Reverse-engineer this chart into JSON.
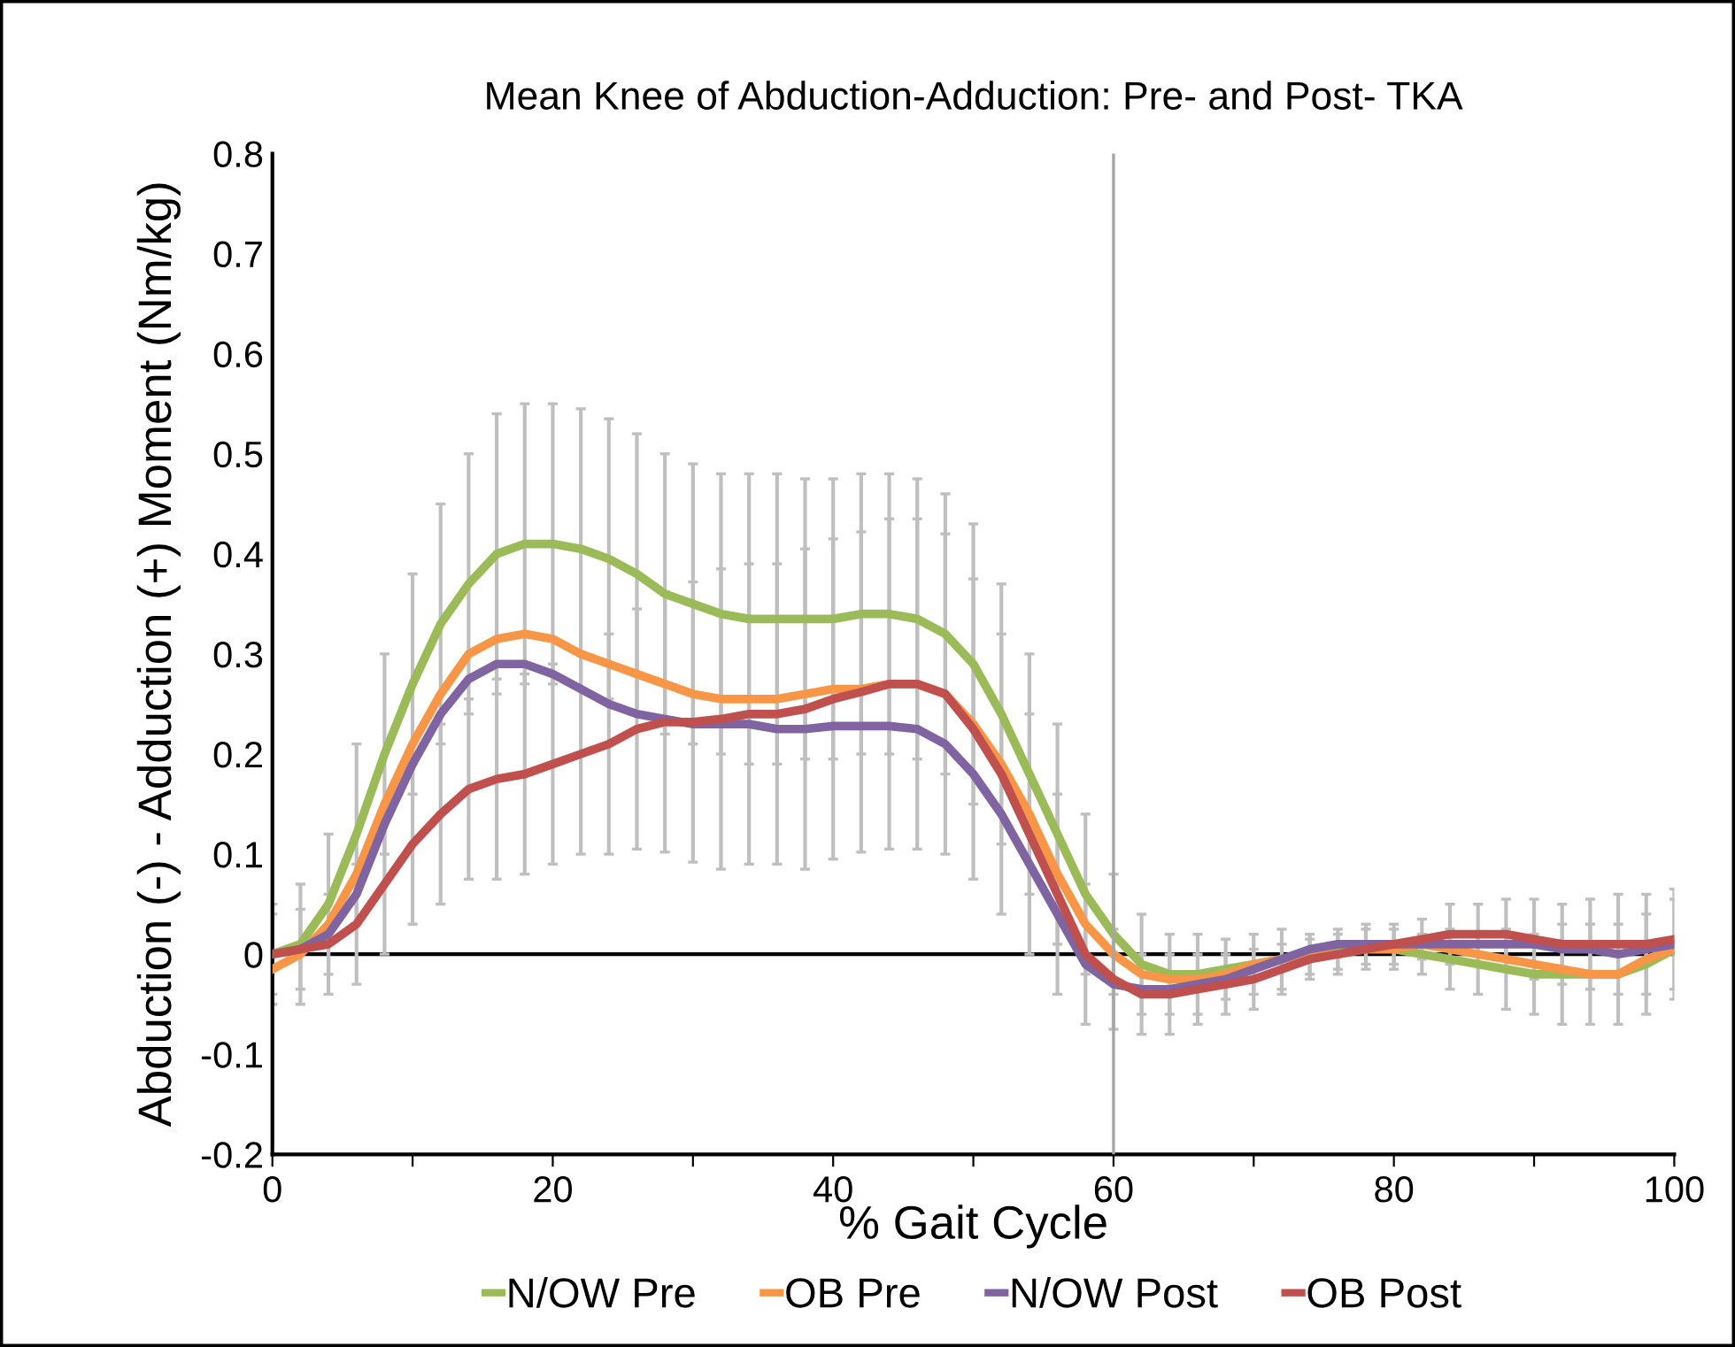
{
  "chart_data": {
    "type": "line",
    "title": "Mean Knee of Abduction-Adduction: Pre- and Post- TKA",
    "xlabel": "% Gait Cycle",
    "ylabel": "Abduction (-) - Adduction (+) Moment (Nm/kg)",
    "x": [
      0,
      2,
      4,
      6,
      8,
      10,
      12,
      14,
      16,
      18,
      20,
      22,
      24,
      26,
      28,
      30,
      32,
      34,
      36,
      38,
      40,
      42,
      44,
      46,
      48,
      50,
      52,
      54,
      56,
      58,
      60,
      62,
      64,
      66,
      68,
      70,
      72,
      74,
      76,
      78,
      80,
      82,
      84,
      86,
      88,
      90,
      92,
      94,
      96,
      98,
      100
    ],
    "series": [
      {
        "name": "N/OW Pre",
        "color": "#9bbb59",
        "values": [
          0,
          0.01,
          0.05,
          0.12,
          0.2,
          0.27,
          0.33,
          0.37,
          0.4,
          0.41,
          0.41,
          0.405,
          0.395,
          0.38,
          0.36,
          0.35,
          0.34,
          0.335,
          0.335,
          0.335,
          0.335,
          0.34,
          0.34,
          0.335,
          0.32,
          0.29,
          0.24,
          0.18,
          0.12,
          0.06,
          0.02,
          -0.01,
          -0.02,
          -0.02,
          -0.015,
          -0.01,
          -0.005,
          0,
          0.005,
          0.01,
          0.005,
          0,
          -0.005,
          -0.01,
          -0.015,
          -0.02,
          -0.02,
          -0.02,
          -0.02,
          -0.01,
          0.005
        ],
        "errors": [
          0.05,
          0.06,
          0.07,
          0.09,
          0.1,
          0.11,
          0.12,
          0.13,
          0.14,
          0.14,
          0.14,
          0.14,
          0.14,
          0.14,
          0.14,
          0.14,
          0.14,
          0.145,
          0.145,
          0.14,
          0.14,
          0.14,
          0.14,
          0.14,
          0.14,
          0.14,
          0.13,
          0.12,
          0.11,
          0.08,
          0.06,
          0.05,
          0.04,
          0.04,
          0.03,
          0.03,
          0.03,
          0.02,
          0.02,
          0.02,
          0.02,
          0.02,
          0.03,
          0.03,
          0.04,
          0.04,
          0.05,
          0.05,
          0.05,
          0.05,
          0.05
        ]
      },
      {
        "name": "OB Pre",
        "color": "#f79646",
        "values": [
          -0.015,
          0,
          0.03,
          0.08,
          0.15,
          0.21,
          0.26,
          0.3,
          0.315,
          0.32,
          0.315,
          0.3,
          0.29,
          0.28,
          0.27,
          0.26,
          0.255,
          0.255,
          0.255,
          0.26,
          0.265,
          0.265,
          0.27,
          0.27,
          0.26,
          0.23,
          0.19,
          0.14,
          0.08,
          0.03,
          0,
          -0.02,
          -0.025,
          -0.025,
          -0.02,
          -0.01,
          -0.005,
          0,
          0,
          0.005,
          0.005,
          0.01,
          0.005,
          0,
          -0.005,
          -0.01,
          -0.015,
          -0.02,
          -0.02,
          -0.005,
          0.005
        ]
      },
      {
        "name": "N/OW Post",
        "color": "#8064a2",
        "values": [
          0,
          0.005,
          0.02,
          0.06,
          0.13,
          0.19,
          0.24,
          0.275,
          0.29,
          0.29,
          0.28,
          0.265,
          0.25,
          0.24,
          0.235,
          0.23,
          0.23,
          0.23,
          0.225,
          0.225,
          0.228,
          0.228,
          0.228,
          0.225,
          0.21,
          0.18,
          0.14,
          0.09,
          0.04,
          -0.01,
          -0.03,
          -0.035,
          -0.035,
          -0.03,
          -0.025,
          -0.015,
          -0.005,
          0.005,
          0.01,
          0.01,
          0.01,
          0.01,
          0.01,
          0.01,
          0.01,
          0.01,
          0.005,
          0.005,
          0,
          0.005,
          0.01
        ]
      },
      {
        "name": "OB Post",
        "color": "#c0504d",
        "values": [
          0,
          0.005,
          0.01,
          0.03,
          0.07,
          0.11,
          0.14,
          0.165,
          0.175,
          0.18,
          0.19,
          0.2,
          0.21,
          0.225,
          0.232,
          0.232,
          0.235,
          0.24,
          0.24,
          0.245,
          0.255,
          0.262,
          0.27,
          0.27,
          0.26,
          0.225,
          0.18,
          0.12,
          0.06,
          0,
          -0.025,
          -0.04,
          -0.04,
          -0.035,
          -0.03,
          -0.025,
          -0.015,
          -0.005,
          0,
          0.005,
          0.01,
          0.015,
          0.02,
          0.02,
          0.02,
          0.015,
          0.01,
          0.01,
          0.01,
          0.01,
          0.015
        ],
        "errors": [
          0.04,
          0.04,
          0.05,
          0.06,
          0.07,
          0.08,
          0.09,
          0.09,
          0.1,
          0.1,
          0.1,
          0.1,
          0.11,
          0.12,
          0.13,
          0.14,
          0.15,
          0.15,
          0.15,
          0.16,
          0.16,
          0.16,
          0.165,
          0.165,
          0.16,
          0.15,
          0.14,
          0.12,
          0.1,
          0.07,
          0.05,
          0.04,
          0.04,
          0.035,
          0.03,
          0.03,
          0.025,
          0.02,
          0.02,
          0.02,
          0.02,
          0.02,
          0.03,
          0.03,
          0.035,
          0.04,
          0.04,
          0.045,
          0.05,
          0.05,
          0.05
        ]
      }
    ],
    "xlim": [
      0,
      100
    ],
    "xticks": [
      0,
      {
        "value": 10,
        "label": null
      },
      20,
      {
        "value": 30,
        "label": null
      },
      40,
      {
        "value": 50,
        "label": null
      },
      60,
      {
        "value": 70,
        "label": null
      },
      80,
      {
        "value": 90,
        "label": null
      },
      100
    ],
    "ylim": [
      -0.2,
      0.8
    ],
    "yticks": [
      -0.2,
      -0.1,
      0,
      0.1,
      0.2,
      0.3,
      0.4,
      0.5,
      0.6,
      0.7,
      0.8
    ],
    "ref_lines": [
      {
        "axis": "y",
        "value": 0,
        "color": "#000000"
      },
      {
        "axis": "x",
        "value": 60,
        "color": "#a6a6a6"
      }
    ],
    "grid": false,
    "legend": "bottom",
    "marker": "none",
    "line_style": "solid"
  }
}
